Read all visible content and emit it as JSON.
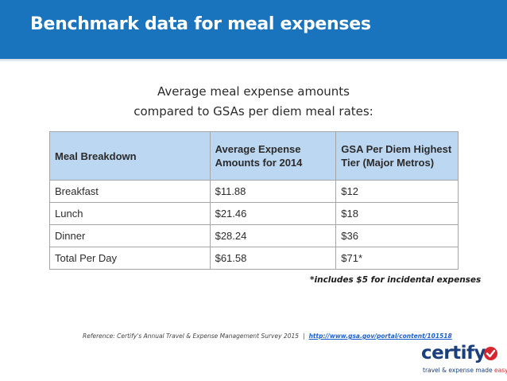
{
  "header": {
    "title": "Benchmark data for meal expenses"
  },
  "subtitle": {
    "line1": "Average meal expense amounts",
    "line2": "compared to GSAs per diem meal rates:"
  },
  "table": {
    "headers": [
      "Meal Breakdown",
      "Average Expense Amounts for 2014",
      "GSA Per Diem Highest Tier (Major Metros)"
    ],
    "rows": [
      [
        "Breakfast",
        "$11.88",
        "$12"
      ],
      [
        "Lunch",
        "$21.46",
        "$18"
      ],
      [
        "Dinner",
        "$28.24",
        "$36"
      ],
      [
        "Total Per Day",
        "$61.58",
        "$71*"
      ]
    ]
  },
  "footnote": "*includes $5 for incidental expenses",
  "reference": {
    "text": "Reference: Certify's Annual Travel & Expense Management Survey 2015",
    "separator": "|",
    "link": "http://www.gsa.gov/portal/content/101518"
  },
  "logo": {
    "name": "certify",
    "tagline_main": "travel & expense made ",
    "tagline_accent": "easy"
  },
  "colors": {
    "header_bg": "#1a73bd",
    "table_header_bg": "#bcd7f2",
    "logo_red": "#d8262f"
  }
}
